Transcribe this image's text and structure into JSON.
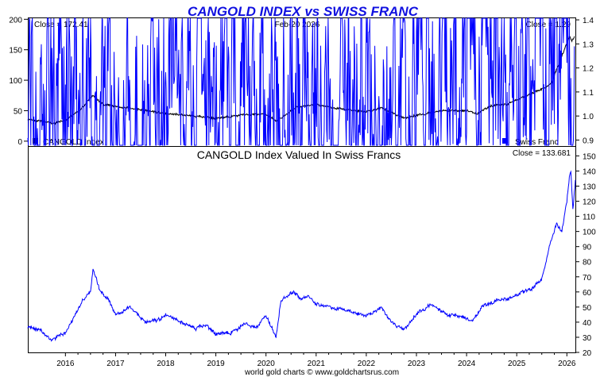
{
  "title": "CANGOLD INDEX vs SWISS FRANC",
  "footer": "world gold charts © www.goldchartsrus.com",
  "colors": {
    "title": "#1010e0",
    "cangold": "#000000",
    "franc": "#0000ff",
    "ratio": "#0000ff",
    "frame": "#000000"
  },
  "top_panel": {
    "close_left": "Close = 172.41",
    "date": "Feb-20  2026",
    "close_right": "Close = 1.29",
    "legend_left": "CANGOLD Index",
    "legend_right": "Swiss Franc"
  },
  "bottom_panel": {
    "title": "CANGOLD Index Valued In Swiss Francs",
    "close": "Close = 133.681"
  },
  "chart_data": [
    {
      "type": "line",
      "x_range": [
        2015.25,
        2026.17
      ],
      "x_ticks": [
        "2016",
        "2017",
        "2018",
        "2019",
        "2020",
        "2021",
        "2022",
        "2023",
        "2024",
        "2025",
        "2026"
      ],
      "y_left": {
        "ticks": [
          0,
          50,
          100,
          150,
          200
        ],
        "range": [
          -8,
          203
        ]
      },
      "y_right": {
        "ticks": [
          0.9,
          1.0,
          1.1,
          1.2,
          1.3,
          1.4
        ],
        "range": [
          0.875,
          1.41
        ]
      },
      "series": [
        {
          "name": "CANGOLD Index",
          "axis": "left",
          "points": [
            [
              2015.25,
              36
            ],
            [
              2015.5,
              33
            ],
            [
              2015.75,
              29
            ],
            [
              2016.0,
              34
            ],
            [
              2016.3,
              52
            ],
            [
              2016.55,
              76
            ],
            [
              2016.75,
              60
            ],
            [
              2017.0,
              57
            ],
            [
              2017.5,
              52
            ],
            [
              2018.0,
              45
            ],
            [
              2018.5,
              42
            ],
            [
              2019.0,
              37
            ],
            [
              2019.5,
              43
            ],
            [
              2020.0,
              45
            ],
            [
              2020.2,
              33
            ],
            [
              2020.6,
              55
            ],
            [
              2021.0,
              60
            ],
            [
              2021.5,
              53
            ],
            [
              2022.0,
              48
            ],
            [
              2022.3,
              55
            ],
            [
              2022.75,
              38
            ],
            [
              2023.0,
              42
            ],
            [
              2023.5,
              50
            ],
            [
              2024.0,
              50
            ],
            [
              2024.2,
              45
            ],
            [
              2024.5,
              58
            ],
            [
              2024.8,
              60
            ],
            [
              2025.0,
              68
            ],
            [
              2025.3,
              78
            ],
            [
              2025.5,
              85
            ],
            [
              2025.7,
              95
            ],
            [
              2025.85,
              130
            ],
            [
              2025.95,
              150
            ],
            [
              2026.05,
              172
            ],
            [
              2026.1,
              165
            ],
            [
              2026.15,
              172
            ]
          ]
        },
        {
          "name": "Swiss Franc",
          "axis": "right",
          "points": [
            [
              2015.25,
              1.03
            ],
            [
              2015.6,
              1.06
            ],
            [
              2015.9,
              1.01
            ],
            [
              2016.2,
              1.03
            ],
            [
              2016.5,
              1.06
            ],
            [
              2016.8,
              1.02
            ],
            [
              2017.0,
              1.0
            ],
            [
              2017.3,
              1.02
            ],
            [
              2017.6,
              1.08
            ],
            [
              2017.9,
              1.03
            ],
            [
              2018.0,
              1.05
            ],
            [
              2018.2,
              1.07
            ],
            [
              2018.5,
              1.04
            ],
            [
              2018.8,
              1.03
            ],
            [
              2019.0,
              1.02
            ],
            [
              2019.5,
              1.01
            ],
            [
              2019.9,
              1.03
            ],
            [
              2020.2,
              1.05
            ],
            [
              2020.5,
              1.06
            ],
            [
              2020.8,
              1.1
            ],
            [
              2021.0,
              1.12
            ],
            [
              2021.3,
              1.09
            ],
            [
              2021.6,
              1.1
            ],
            [
              2021.9,
              1.09
            ],
            [
              2022.2,
              1.07
            ],
            [
              2022.5,
              1.04
            ],
            [
              2022.8,
              1.01
            ],
            [
              2023.0,
              1.08
            ],
            [
              2023.3,
              1.12
            ],
            [
              2023.6,
              1.13
            ],
            [
              2023.9,
              1.18
            ],
            [
              2024.0,
              1.14
            ],
            [
              2024.3,
              1.17
            ],
            [
              2024.5,
              1.16
            ],
            [
              2024.7,
              1.19
            ],
            [
              2024.9,
              1.13
            ],
            [
              2025.0,
              1.16
            ],
            [
              2025.3,
              1.22
            ],
            [
              2025.5,
              1.25
            ],
            [
              2025.7,
              1.25
            ],
            [
              2025.9,
              1.24
            ],
            [
              2026.05,
              1.27
            ],
            [
              2026.15,
              1.29
            ]
          ]
        }
      ]
    },
    {
      "type": "line",
      "title": "CANGOLD Index Valued In Swiss Francs",
      "x_range": [
        2015.25,
        2026.17
      ],
      "x_ticks": [
        "2016",
        "2017",
        "2018",
        "2019",
        "2020",
        "2021",
        "2022",
        "2023",
        "2024",
        "2025",
        "2026"
      ],
      "y_right": {
        "ticks": [
          20,
          30,
          40,
          50,
          60,
          70,
          80,
          90,
          100,
          110,
          120,
          130,
          140,
          150
        ],
        "range": [
          20,
          156
        ]
      },
      "series": [
        {
          "name": "CANGOLD Index Valued In Swiss Francs",
          "axis": "right",
          "points": [
            [
              2015.25,
              37
            ],
            [
              2015.5,
              35
            ],
            [
              2015.7,
              28
            ],
            [
              2016.0,
              33
            ],
            [
              2016.2,
              45
            ],
            [
              2016.35,
              55
            ],
            [
              2016.5,
              60
            ],
            [
              2016.55,
              76
            ],
            [
              2016.7,
              60
            ],
            [
              2016.85,
              55
            ],
            [
              2017.0,
              45
            ],
            [
              2017.3,
              50
            ],
            [
              2017.6,
              40
            ],
            [
              2017.9,
              42
            ],
            [
              2018.0,
              45
            ],
            [
              2018.3,
              40
            ],
            [
              2018.6,
              36
            ],
            [
              2018.8,
              38
            ],
            [
              2019.0,
              32
            ],
            [
              2019.3,
              33
            ],
            [
              2019.6,
              39
            ],
            [
              2019.8,
              36
            ],
            [
              2020.0,
              45
            ],
            [
              2020.2,
              30
            ],
            [
              2020.3,
              55
            ],
            [
              2020.55,
              60
            ],
            [
              2020.7,
              55
            ],
            [
              2020.85,
              57
            ],
            [
              2021.0,
              52
            ],
            [
              2021.3,
              50
            ],
            [
              2021.6,
              48
            ],
            [
              2022.0,
              44
            ],
            [
              2022.3,
              50
            ],
            [
              2022.5,
              40
            ],
            [
              2022.75,
              35
            ],
            [
              2023.0,
              45
            ],
            [
              2023.3,
              52
            ],
            [
              2023.6,
              45
            ],
            [
              2023.9,
              44
            ],
            [
              2024.1,
              40
            ],
            [
              2024.3,
              50
            ],
            [
              2024.6,
              54
            ],
            [
              2024.9,
              56
            ],
            [
              2025.1,
              60
            ],
            [
              2025.3,
              62
            ],
            [
              2025.5,
              68
            ],
            [
              2025.65,
              90
            ],
            [
              2025.8,
              105
            ],
            [
              2025.9,
              100
            ],
            [
              2026.0,
              120
            ],
            [
              2026.05,
              136
            ],
            [
              2026.08,
              140
            ],
            [
              2026.12,
              115
            ],
            [
              2026.17,
              134
            ]
          ]
        }
      ]
    }
  ]
}
